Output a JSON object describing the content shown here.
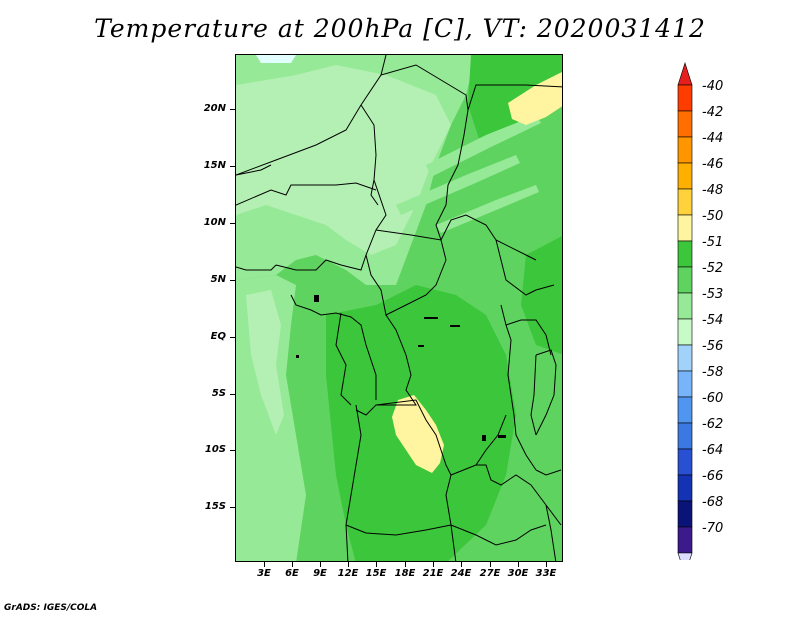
{
  "title": "Temperature at 200hPa [C], VT: 2020031412",
  "credit": "GrADS: IGES/COLA",
  "map": {
    "lat_labels": [
      "20N",
      "15N",
      "10N",
      "5N",
      "EQ",
      "5S",
      "10S",
      "15S"
    ],
    "lon_labels": [
      "3E",
      "6E",
      "9E",
      "12E",
      "15E",
      "18E",
      "21E",
      "24E",
      "27E",
      "30E",
      "33E"
    ],
    "fill_colors": {
      "base": "#5fd35f",
      "darker": "#3cc63c",
      "lighter": "#96e996",
      "palest": "#b4f0b4",
      "ice": "#e1ffff",
      "warm": "#fff5a0"
    }
  },
  "colorbar": {
    "labels": [
      "-40",
      "-42",
      "-44",
      "-46",
      "-48",
      "-50",
      "-51",
      "-52",
      "-53",
      "-54",
      "-56",
      "-58",
      "-60",
      "-62",
      "-64",
      "-66",
      "-68",
      "-70"
    ],
    "colors": [
      "#ff3c00",
      "#ff6e00",
      "#ff9600",
      "#ffaf00",
      "#ffd23c",
      "#fff5a0",
      "#3cc63c",
      "#5fd35f",
      "#96e996",
      "#c8fac8",
      "#a0d2fa",
      "#78b4fa",
      "#5096f0",
      "#3c78e1",
      "#2850d2",
      "#1432b4",
      "#0a1478",
      "#3c1a8c"
    ],
    "top_arrow_color": "#e61e1e",
    "bottom_arrow_color": "#dcdcff"
  }
}
